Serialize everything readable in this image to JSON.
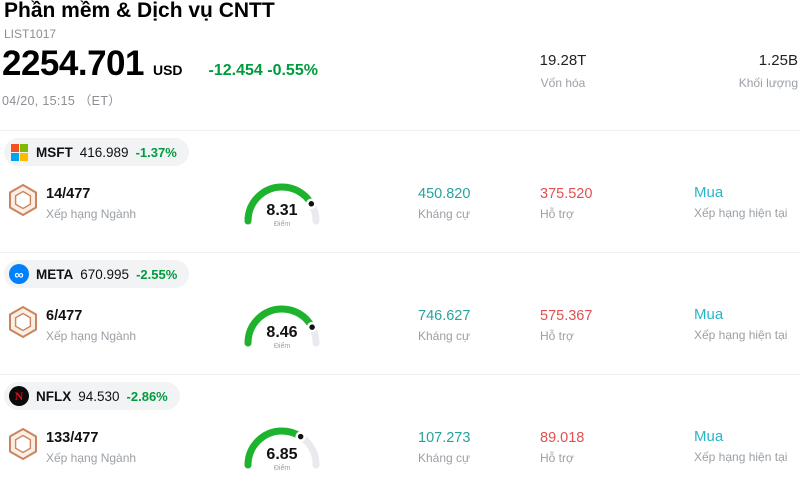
{
  "header": {
    "title": "Phần mềm & Dịch vụ CNTT",
    "list_id": "LIST1017",
    "price": "2254.701",
    "currency": "USD",
    "change": "-12.454 -0.55%",
    "datetime": "04/20, 15:15 （ET）",
    "stats": [
      {
        "value": "19.28T",
        "label": "Vốn hóa"
      },
      {
        "value": "1.25B",
        "label": "Khối lượng"
      }
    ]
  },
  "labels": {
    "rank_label": "Xếp hạng Ngành",
    "score_label": "Điểm",
    "resistance_label": "Kháng cự",
    "support_label": "Hỗ trợ",
    "rating_label": "Xếp hạng hiện tại"
  },
  "stocks": [
    {
      "ticker": "MSFT",
      "price": "416.989",
      "change": "-1.37%",
      "logo_icon": "microsoft-logo-icon",
      "rank": "14/477",
      "score": "8.31",
      "resistance": "450.820",
      "support": "375.520",
      "rating": "Mua"
    },
    {
      "ticker": "META",
      "price": "670.995",
      "change": "-2.55%",
      "logo_icon": "meta-logo-icon",
      "rank": "6/477",
      "score": "8.46",
      "resistance": "746.627",
      "support": "575.367",
      "rating": "Mua"
    },
    {
      "ticker": "NFLX",
      "price": "94.530",
      "change": "-2.86%",
      "logo_icon": "netflix-logo-icon",
      "rank": "133/477",
      "score": "6.85",
      "resistance": "107.273",
      "support": "89.018",
      "rating": "Mua"
    }
  ],
  "icons": {
    "meta_glyph": "∞",
    "netflix_glyph": "N",
    "rank_badge": "hexagon-badge-icon"
  },
  "colors": {
    "green": "#009b3d",
    "teal": "#26a39c",
    "red": "#e2504f",
    "cyan": "#2ab5c8",
    "gauge_green": "#1db32d",
    "gauge_track": "#e8eaed"
  }
}
